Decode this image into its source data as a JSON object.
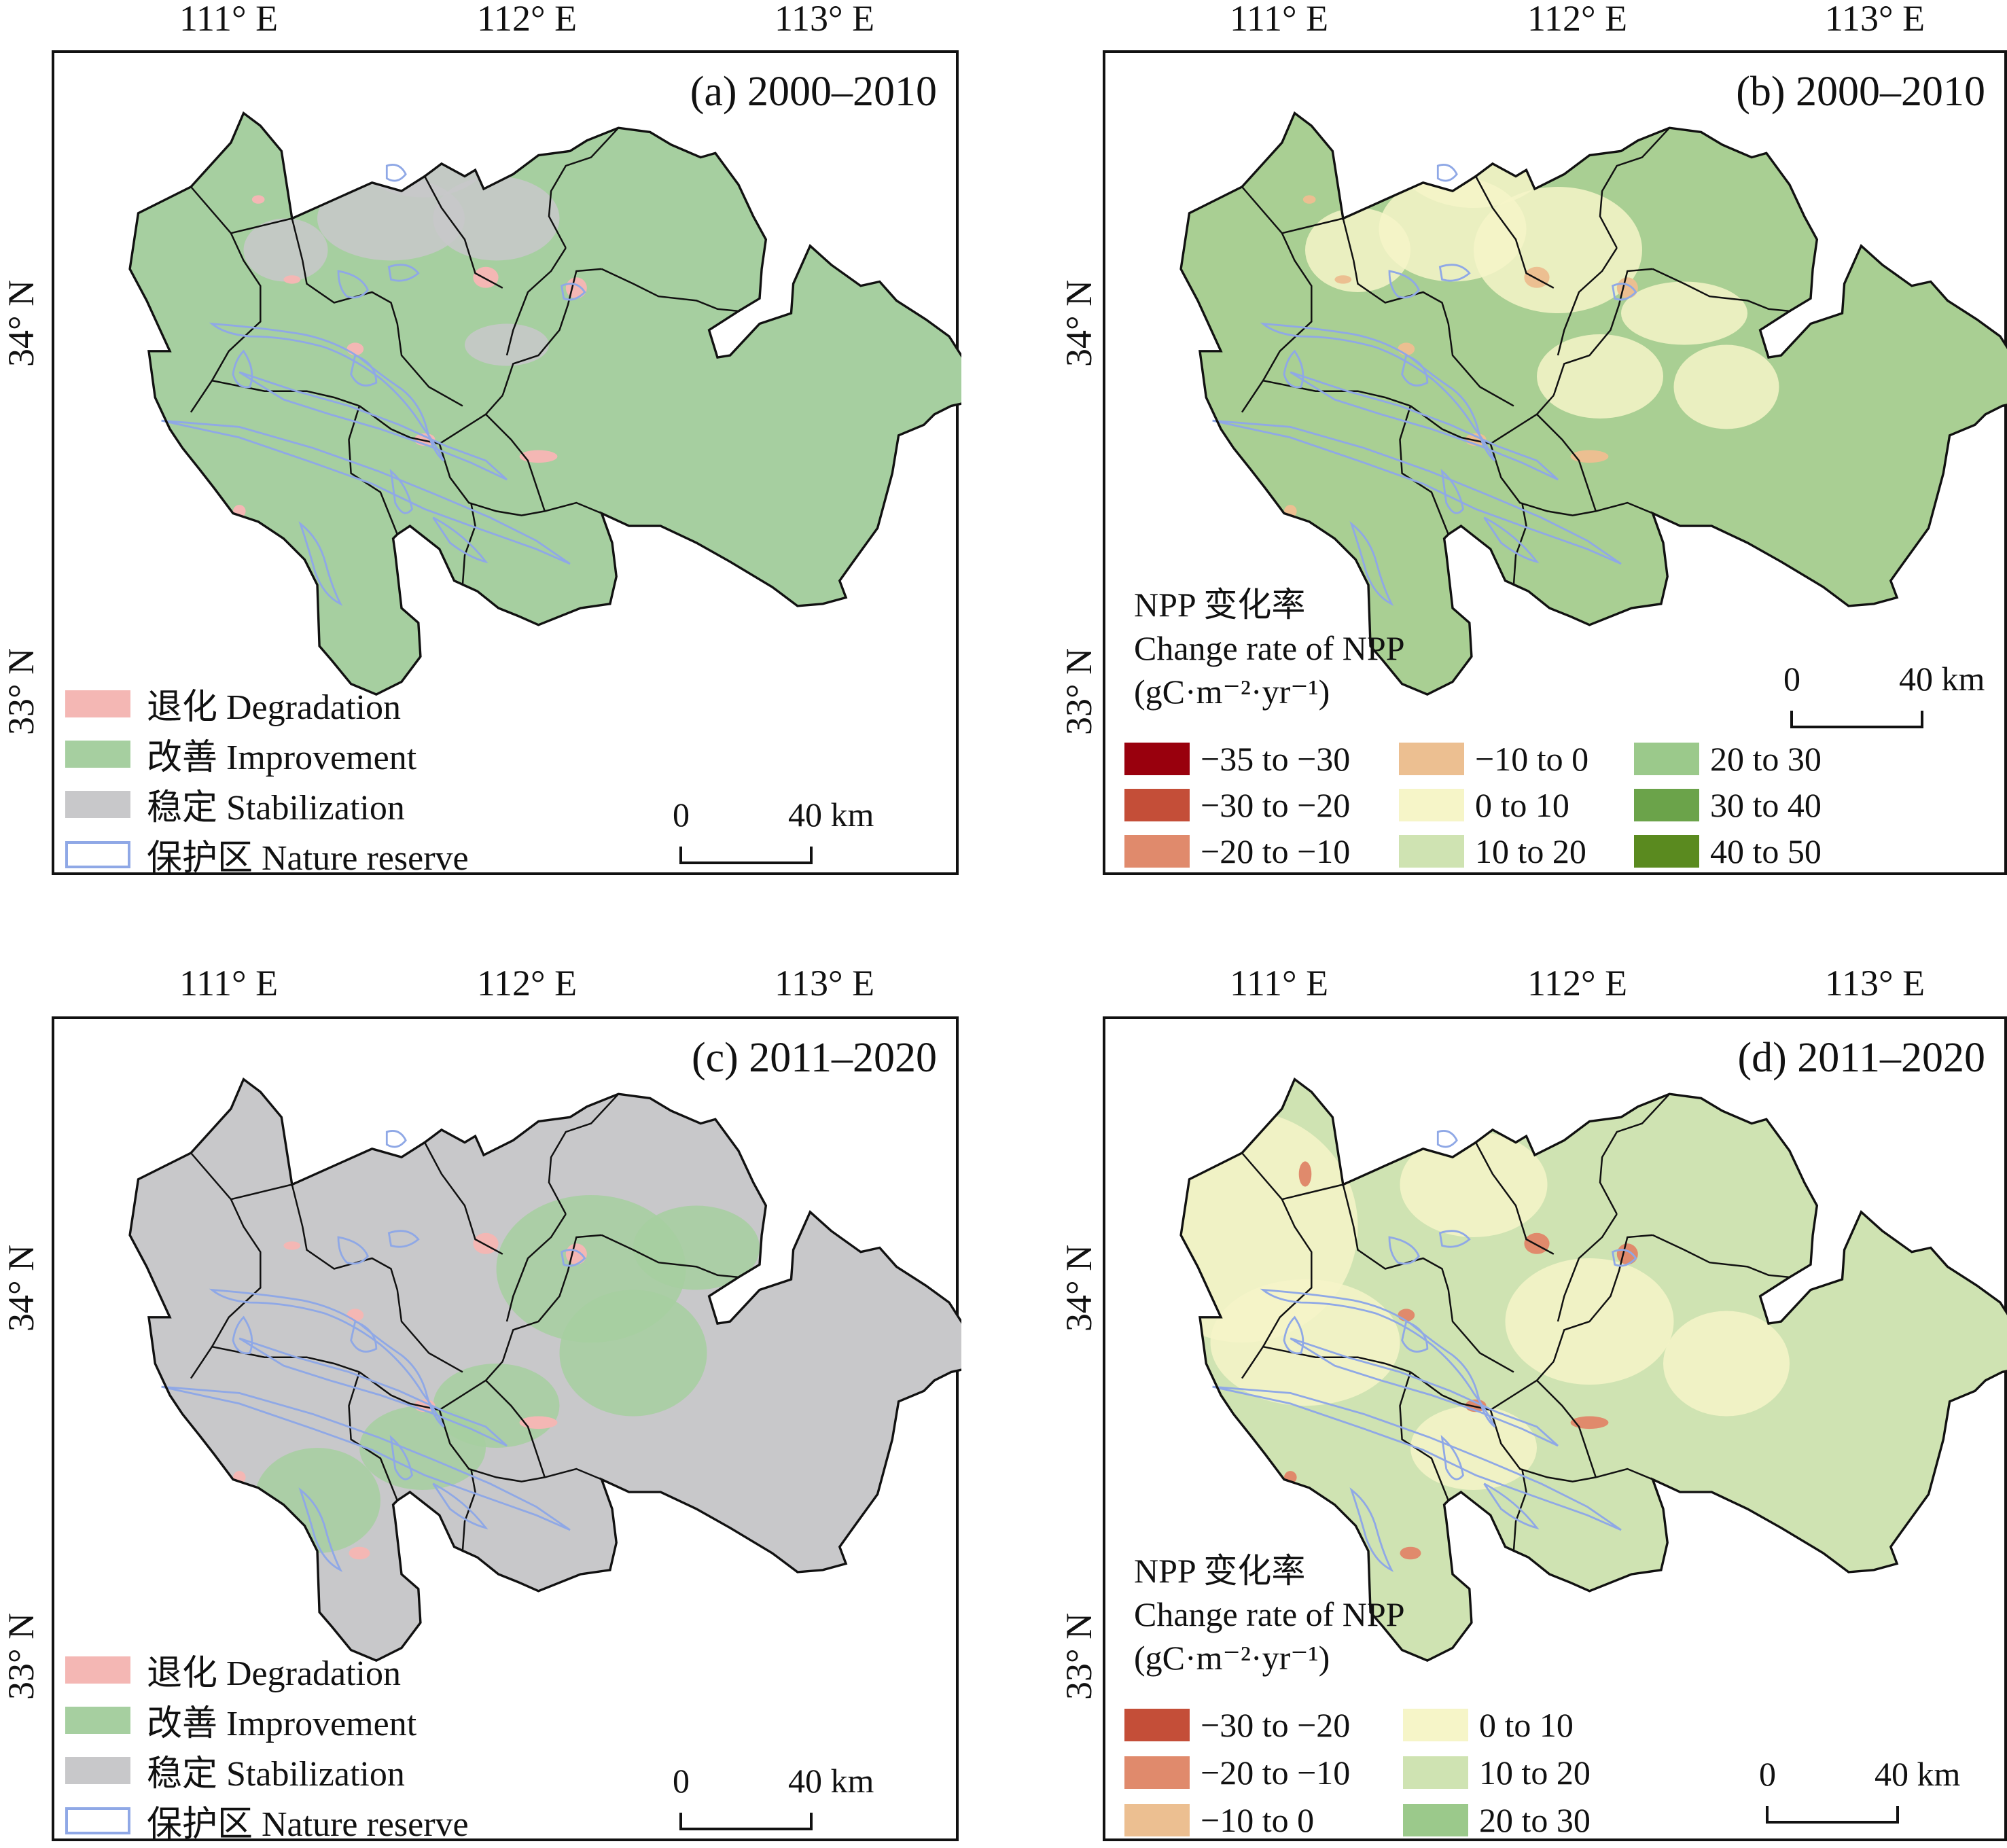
{
  "axes": {
    "lon_labels": [
      "111° E",
      "112° E",
      "113° E"
    ],
    "lat_labels": [
      "34° N",
      "33° N"
    ]
  },
  "scale_bar": {
    "start": "0",
    "end": "40 km"
  },
  "panels": [
    {
      "id": "a",
      "title": "(a) 2000–2010",
      "type": "categorical",
      "legend": [
        {
          "label": "退化 Degradation",
          "color": "#f4b7b4"
        },
        {
          "label": "改善 Improvement",
          "color": "#a6cfa0"
        },
        {
          "label": "稳定 Stabilization",
          "color": "#c8c8ca"
        },
        {
          "label": "保护区 Nature reserve",
          "color": "#8fa8e6"
        }
      ]
    },
    {
      "id": "b",
      "title": "(b) 2000–2010",
      "type": "continuous",
      "colorbar_title": [
        "NPP 变化率",
        "Change rate of NPP",
        "(gC·m⁻²·yr⁻¹)"
      ],
      "classes": [
        {
          "label": "−35 to −30",
          "color": "#99000d"
        },
        {
          "label": "−30 to −20",
          "color": "#c44e38"
        },
        {
          "label": "−20 to −10",
          "color": "#e08a6c"
        },
        {
          "label": "−10 to 0",
          "color": "#ecbf91"
        },
        {
          "label": "0 to 10",
          "color": "#f6f5c8"
        },
        {
          "label": "10 to 20",
          "color": "#cfe3b2"
        },
        {
          "label": "20 to 30",
          "color": "#9bc98b"
        },
        {
          "label": "30 to 40",
          "color": "#6ba34a"
        },
        {
          "label": "40 to 50",
          "color": "#5a8a1f"
        }
      ]
    },
    {
      "id": "c",
      "title": "(c) 2011–2020",
      "type": "categorical",
      "legend": [
        {
          "label": "退化 Degradation",
          "color": "#f4b7b4"
        },
        {
          "label": "改善 Improvement",
          "color": "#a6cfa0"
        },
        {
          "label": "稳定 Stabilization",
          "color": "#c8c8ca"
        },
        {
          "label": "保护区 Nature reserve",
          "color": "#8fa8e6"
        }
      ]
    },
    {
      "id": "d",
      "title": "(d) 2011–2020",
      "type": "continuous",
      "colorbar_title": [
        "NPP 变化率",
        "Change rate of NPP",
        "(gC·m⁻²·yr⁻¹)"
      ],
      "classes": [
        {
          "label": "−30 to −20",
          "color": "#c44e38"
        },
        {
          "label": "−20 to −10",
          "color": "#e08a6c"
        },
        {
          "label": "−10 to 0",
          "color": "#ecbf91"
        },
        {
          "label": "0 to 10",
          "color": "#f6f5c8"
        },
        {
          "label": "10 to 20",
          "color": "#cfe3b2"
        },
        {
          "label": "20 to 30",
          "color": "#9bc98b"
        }
      ]
    }
  ],
  "map_fills": {
    "a": {
      "base": "#a6cfa0",
      "overlay": "#c8c8ca",
      "spots": "#f4b7b4"
    },
    "b": {
      "base": "#a9cf93",
      "overlay": "#f6f5c8",
      "spots": "#ecbf91"
    },
    "c": {
      "base": "#c8c8ca",
      "overlay": "#a6cfa0",
      "spots": "#f4b7b4"
    },
    "d": {
      "base": "#cfe3b2",
      "overlay": "#f6f5c8",
      "spots": "#e08a6c"
    }
  }
}
